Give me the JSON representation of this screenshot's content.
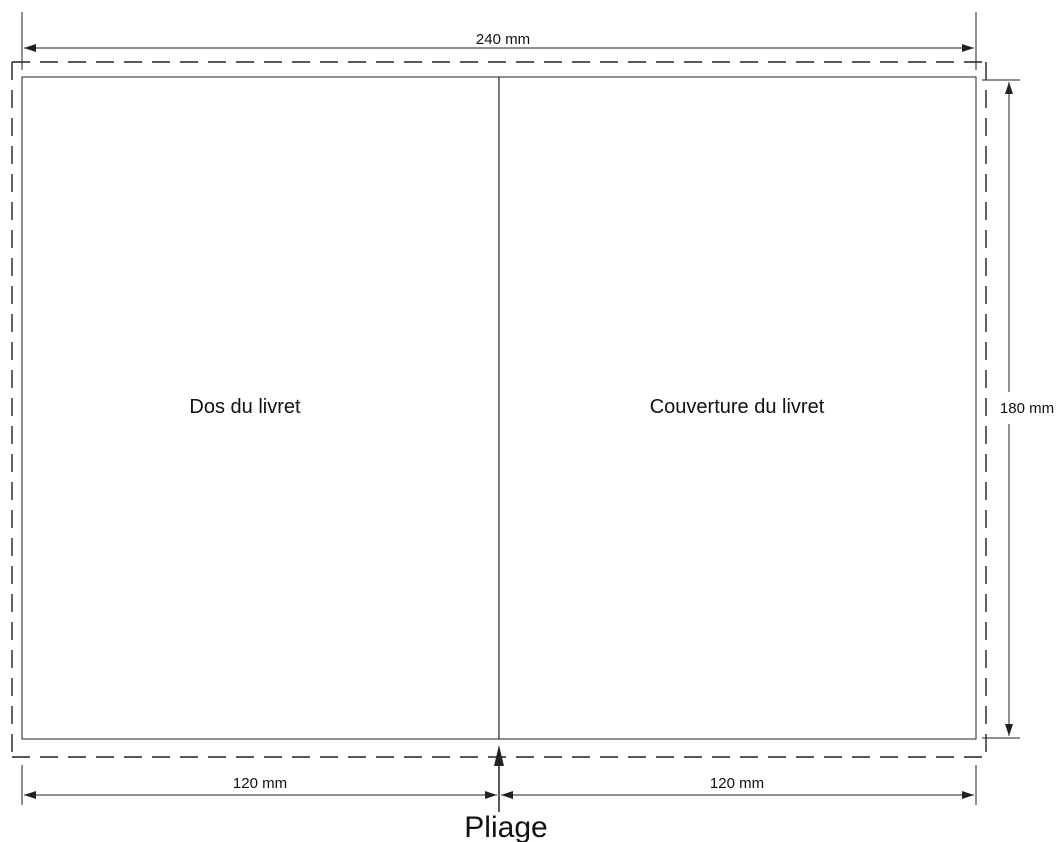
{
  "dimensions": {
    "total_width": "240 mm",
    "height": "180 mm",
    "left_panel_width": "120 mm",
    "right_panel_width": "120 mm"
  },
  "panels": {
    "left_label": "Dos du livret",
    "right_label": "Couverture du livret"
  },
  "fold": {
    "label": "Pliage"
  },
  "colors": {
    "line": "#222222",
    "background": "#ffffff"
  }
}
